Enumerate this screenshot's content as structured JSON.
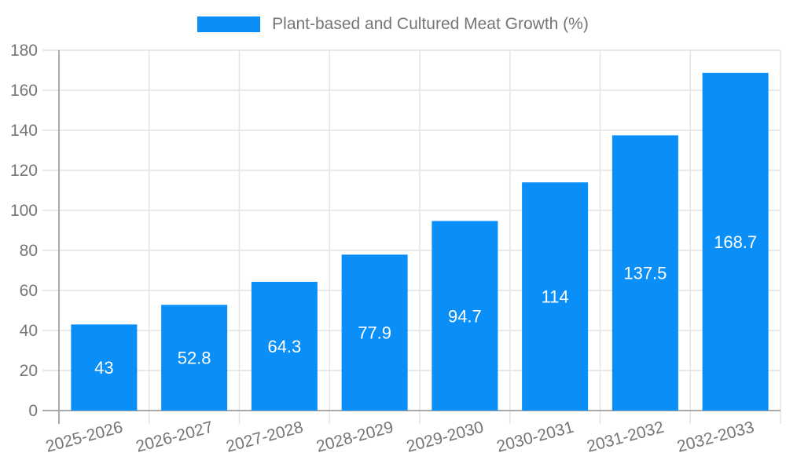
{
  "chart_data": {
    "type": "bar",
    "title": "Plant-based and Cultured Meat Growth (%)",
    "legend_position": "top",
    "grid": true,
    "categories": [
      "2025-2026",
      "2026-2027",
      "2027-2028",
      "2028-2029",
      "2029-2030",
      "2030-2031",
      "2031-2032",
      "2032-2033"
    ],
    "series": [
      {
        "name": "Plant-based and Cultured Meat Growth (%)",
        "values": [
          43,
          52.8,
          64.3,
          77.9,
          94.7,
          114,
          137.5,
          168.7
        ]
      }
    ],
    "value_labels": [
      "43",
      "52.8",
      "64.3",
      "77.9",
      "94.7",
      "114",
      "137.5",
      "168.7"
    ],
    "xlabel": "",
    "ylabel": "",
    "ylim": [
      0,
      180
    ],
    "yticks": [
      0,
      20,
      40,
      60,
      80,
      100,
      120,
      140,
      160,
      180
    ],
    "x_tick_rotation_deg": -15,
    "colors": {
      "bar": "#0a8ff8",
      "bar_label_text": "#ffffff",
      "axis_text": "#757575",
      "grid_line": "#e6e6e6",
      "axis_line": "#a9a9a9",
      "background": "#ffffff"
    }
  }
}
